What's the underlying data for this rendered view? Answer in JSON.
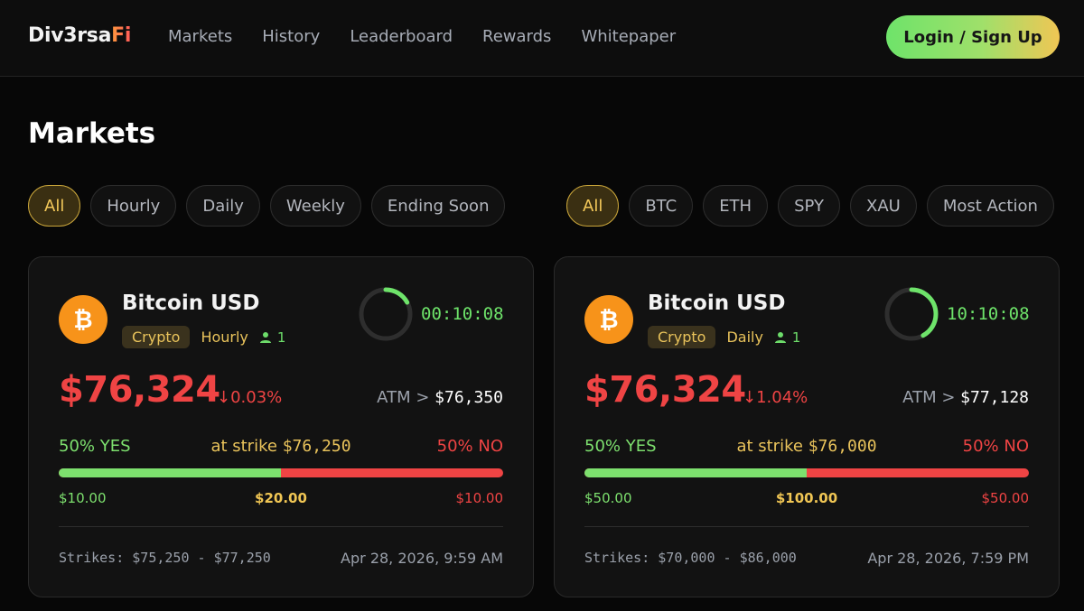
{
  "header": {
    "logo_white": "Div3rsa",
    "logo_accent": "Fi",
    "nav": [
      "Markets",
      "History",
      "Leaderboard",
      "Rewards",
      "Whitepaper"
    ],
    "login_label": "Login / Sign Up"
  },
  "page_title": "Markets",
  "filters_time": {
    "options": [
      "All",
      "Hourly",
      "Daily",
      "Weekly",
      "Ending Soon"
    ],
    "selected": "All"
  },
  "filters_asset": {
    "options": [
      "All",
      "BTC",
      "ETH",
      "SPY",
      "XAU",
      "Most Action"
    ],
    "selected": "All"
  },
  "colors": {
    "yes": "#7de06e",
    "no": "#ef4444",
    "accent": "#f0c654",
    "coin": "#f7931a"
  },
  "cards": [
    {
      "asset_name": "Bitcoin USD",
      "coin_icon": "bitcoin-icon",
      "category": "Crypto",
      "frequency": "Hourly",
      "participants": "1",
      "timer": "00:10:08",
      "timer_progress": 0.17,
      "price": "$76,324",
      "change": "↓0.03%",
      "atm_label": "ATM >",
      "atm_value": "$76,350",
      "yes_label": "50% YES",
      "strike_label": "at strike",
      "strike_value": "$76,250",
      "no_label": "50% NO",
      "yes_fraction": 0.5,
      "yes_amount": "$10.00",
      "total_amount": "$20.00",
      "no_amount": "$10.00",
      "strikes_range": "Strikes: $75,250 - $77,250",
      "expiry": "Apr 28, 2026, 9:59 AM"
    },
    {
      "asset_name": "Bitcoin USD",
      "coin_icon": "bitcoin-icon",
      "category": "Crypto",
      "frequency": "Daily",
      "participants": "1",
      "timer": "10:10:08",
      "timer_progress": 0.42,
      "price": "$76,324",
      "change": "↓1.04%",
      "atm_label": "ATM >",
      "atm_value": "$77,128",
      "yes_label": "50% YES",
      "strike_label": "at strike",
      "strike_value": "$76,000",
      "no_label": "50% NO",
      "yes_fraction": 0.5,
      "yes_amount": "$50.00",
      "total_amount": "$100.00",
      "no_amount": "$50.00",
      "strikes_range": "Strikes: $70,000 - $86,000",
      "expiry": "Apr 28, 2026, 7:59 PM"
    }
  ]
}
